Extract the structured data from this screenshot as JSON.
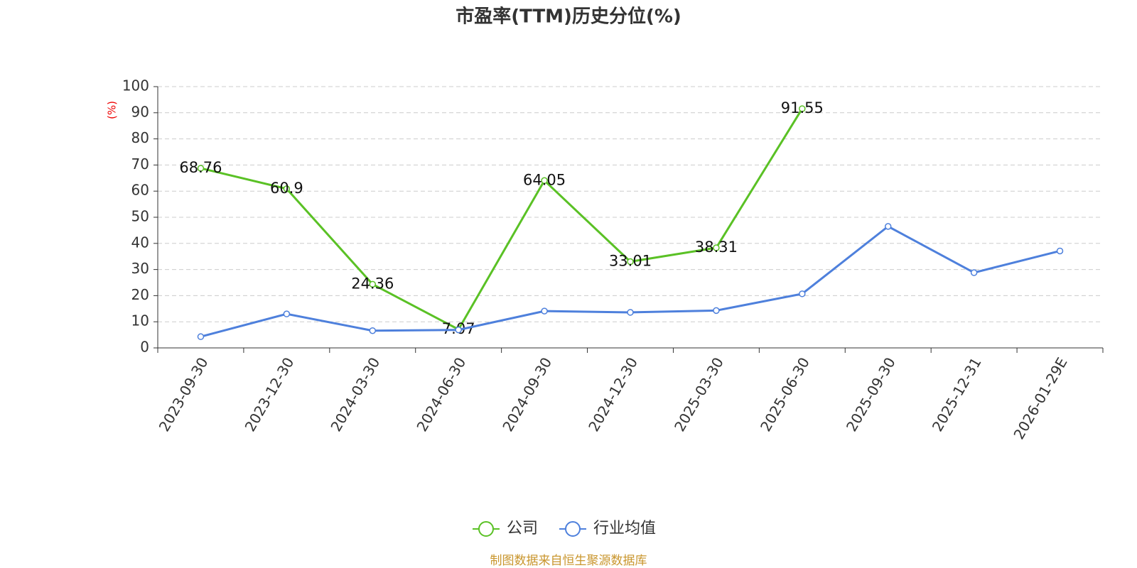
{
  "chart_data": {
    "type": "line",
    "title": "市盈率(TTM)历史分位(%)",
    "y_label": "(%)",
    "source": "制图数据来自恒生聚源数据库",
    "categories": [
      "2023-09-30",
      "2023-12-30",
      "2024-03-30",
      "2024-06-30",
      "2024-09-30",
      "2024-12-30",
      "2025-03-30",
      "2025-06-30",
      "2025-09-30",
      "2025-12-31",
      "2026-01-29E"
    ],
    "series": [
      {
        "name": "公司",
        "color": "#5ac125",
        "values": [
          68.76,
          60.9,
          24.36,
          7.07,
          64.05,
          33.01,
          38.31,
          91.55,
          null,
          null,
          null
        ]
      },
      {
        "name": "行业均值",
        "color": "#4e80dc",
        "values": [
          4.3,
          13.0,
          6.6,
          6.9,
          14.1,
          13.6,
          14.3,
          20.7,
          46.5,
          28.8,
          37.1
        ]
      }
    ],
    "ylim": [
      0,
      100
    ],
    "yticks": [
      0,
      10,
      20,
      30,
      40,
      50,
      60,
      70,
      80,
      90,
      100
    ],
    "grid": true,
    "legend": "bottom"
  }
}
